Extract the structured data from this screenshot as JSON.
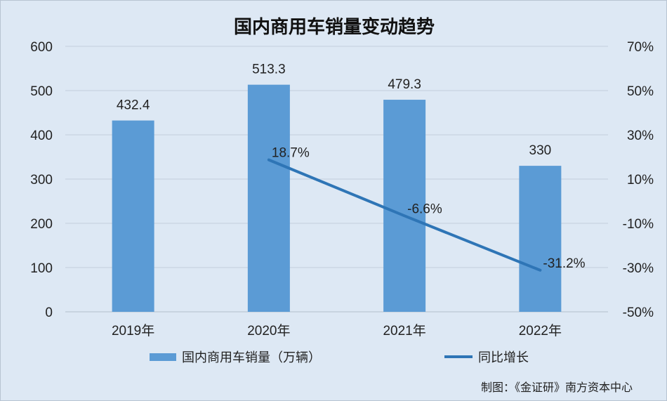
{
  "chart_data": {
    "type": "bar",
    "title": "国内商用车销量变动趋势",
    "categories": [
      "2019年",
      "2020年",
      "2021年",
      "2022年"
    ],
    "series": [
      {
        "name": "国内商用车销量（万辆）",
        "type": "bar",
        "axis": "left",
        "color": "#5b9bd5",
        "values": [
          432.4,
          513.3,
          479.3,
          330
        ],
        "labels": [
          "432.4",
          "513.3",
          "479.3",
          "330"
        ]
      },
      {
        "name": "同比增长",
        "type": "line",
        "axis": "right",
        "color": "#2e75b6",
        "values": [
          null,
          18.7,
          -6.6,
          -31.2
        ],
        "labels": [
          "",
          "18.7%",
          "-6.6%",
          "-31.2%"
        ]
      }
    ],
    "y_left": {
      "range": [
        0,
        600
      ],
      "ticks": [
        0,
        100,
        200,
        300,
        400,
        500,
        600
      ],
      "tick_labels": [
        "0",
        "100",
        "200",
        "300",
        "400",
        "500",
        "600"
      ]
    },
    "y_right": {
      "range": [
        -50,
        70
      ],
      "ticks": [
        -50,
        -30,
        -10,
        10,
        30,
        50,
        70
      ],
      "tick_labels": [
        "-50%",
        "-30%",
        "-10%",
        "10%",
        "30%",
        "50%",
        "70%"
      ]
    },
    "grid": true,
    "legend": "bottom",
    "background": "#dde8f4",
    "gridline_color": "#c4cedb"
  },
  "credit": "制图：《金证研》南方资本中心"
}
